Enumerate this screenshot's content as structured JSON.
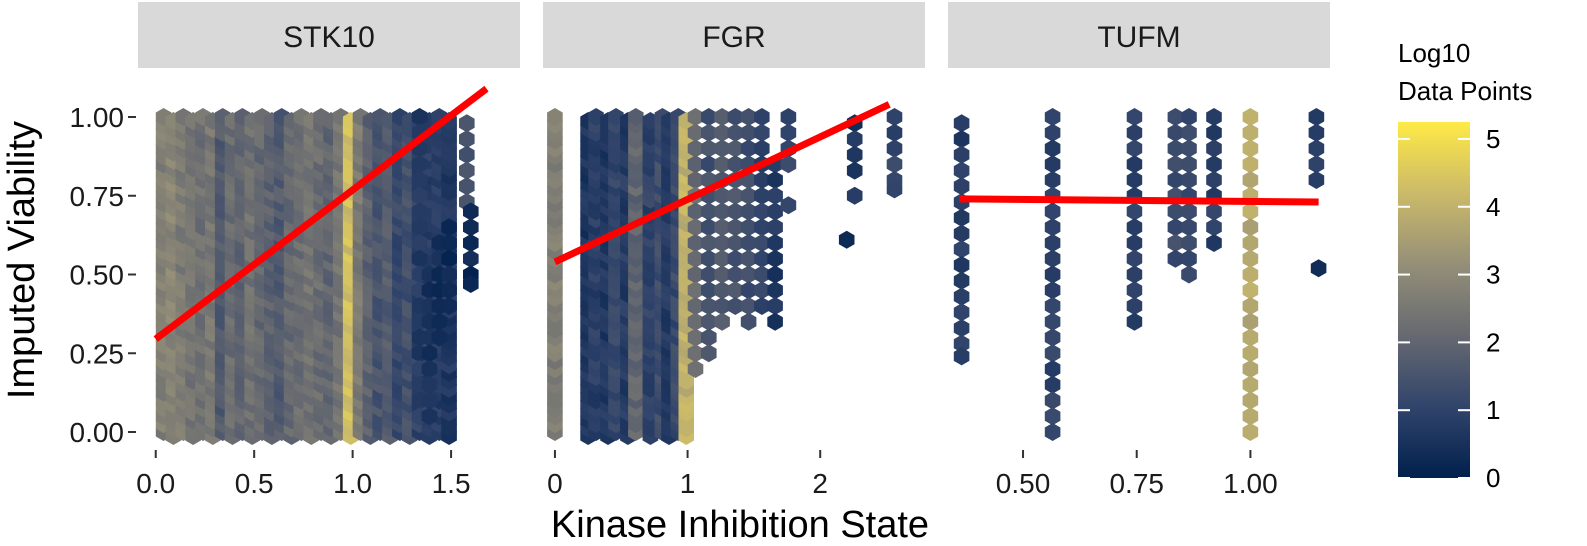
{
  "chart_data": {
    "type": "hexbin",
    "xlabel": "Kinase Inhibition State",
    "ylabel": "Imputed Viability",
    "legend": {
      "title_line1": "Log10",
      "title_line2": "Data Points",
      "ticks": [
        "0",
        "1",
        "2",
        "3",
        "4",
        "5"
      ],
      "range": [
        0,
        5.25
      ],
      "placement": "right",
      "colors": [
        "#00204D",
        "#31446B",
        "#666970",
        "#958F78",
        "#CBBA69",
        "#FFEA46"
      ]
    },
    "line_color": "#FF0000",
    "panels": [
      {
        "strip": "STK10",
        "xlim": [
          -0.09,
          1.85
        ],
        "xticks": [
          0.0,
          0.5,
          1.0,
          1.5
        ],
        "xtick_labels": [
          "0.0",
          "0.5",
          "1.0",
          "1.5"
        ],
        "ylim": [
          -0.05,
          1.08
        ],
        "yticks": [
          0.0,
          0.25,
          0.5,
          0.75,
          1.0
        ],
        "ytick_labels": [
          "0.00",
          "0.25",
          "0.50",
          "0.75",
          "1.00"
        ],
        "x_extent": [
          0.0,
          1.52
        ],
        "fit": {
          "x": [
            0.0,
            1.68
          ],
          "y": [
            0.295,
            1.09
          ]
        },
        "hex_columns": [
          {
            "x": 0.04,
            "v": 2.7
          },
          {
            "x": 0.09,
            "v": 2.9
          },
          {
            "x": 0.14,
            "v": 2.6
          },
          {
            "x": 0.19,
            "v": 2.4
          },
          {
            "x": 0.24,
            "v": 2.3
          },
          {
            "x": 0.29,
            "v": 2.5
          },
          {
            "x": 0.34,
            "v": 1.7
          },
          {
            "x": 0.39,
            "v": 2.2
          },
          {
            "x": 0.44,
            "v": 2.0
          },
          {
            "x": 0.49,
            "v": 2.3
          },
          {
            "x": 0.54,
            "v": 2.1
          },
          {
            "x": 0.59,
            "v": 1.9
          },
          {
            "x": 0.64,
            "v": 1.7
          },
          {
            "x": 0.69,
            "v": 2.1
          },
          {
            "x": 0.74,
            "v": 2.2
          },
          {
            "x": 0.79,
            "v": 2.4
          },
          {
            "x": 0.84,
            "v": 2.2
          },
          {
            "x": 0.89,
            "v": 2.0
          },
          {
            "x": 0.94,
            "v": 2.4
          },
          {
            "x": 0.99,
            "v": 4.3
          },
          {
            "x": 1.04,
            "v": 2.6
          },
          {
            "x": 1.09,
            "v": 1.9
          },
          {
            "x": 1.14,
            "v": 1.5
          },
          {
            "x": 1.19,
            "v": 1.7
          },
          {
            "x": 1.24,
            "v": 1.2
          },
          {
            "x": 1.29,
            "v": 1.4
          },
          {
            "x": 1.34,
            "v": 1.0
          },
          {
            "x": 1.39,
            "v": 0.9
          },
          {
            "x": 1.44,
            "v": 0.8
          },
          {
            "x": 1.49,
            "v": 0.7
          }
        ],
        "hex_sparse": [
          {
            "x": 1.34,
            "y": [
              1.0,
              0.95,
              0.9,
              0.85,
              0.8,
              0.75,
              0.7,
              0.65,
              0.6,
              0.55,
              0.5,
              0.45,
              0.4,
              0.35,
              0.3,
              0.25,
              0.2,
              0.15,
              0.1,
              0.05
            ],
            "v": 0.8
          },
          {
            "x": 1.39,
            "y": [
              0.5,
              0.45,
              0.4,
              0.35,
              0.3,
              0.25,
              0.2,
              0.15,
              0.1,
              0.05
            ],
            "v": 0.5
          },
          {
            "x": 1.44,
            "y": [
              0.6,
              0.55,
              0.5,
              0.45,
              0.4,
              0.35,
              0.3
            ],
            "v": 0.4
          },
          {
            "x": 1.49,
            "y": [
              0.65,
              0.6,
              0.55,
              0.5,
              0.45,
              0.4
            ],
            "v": 0.3
          },
          {
            "x": 1.58,
            "y": [
              0.98,
              0.93,
              0.88,
              0.83,
              0.78,
              0.73
            ],
            "v": 1.4
          },
          {
            "x": 1.6,
            "y": [
              0.7,
              0.65,
              0.6,
              0.55,
              0.5,
              0.47
            ],
            "v": 0.3
          }
        ]
      },
      {
        "strip": "FGR",
        "xlim": [
          -0.09,
          2.79
        ],
        "xticks": [
          0,
          1,
          2
        ],
        "xtick_labels": [
          "0",
          "1",
          "2"
        ],
        "ylim": [
          -0.05,
          1.08
        ],
        "hex_columns": [
          {
            "x": 0.0,
            "v": 2.7
          },
          {
            "x": 0.25,
            "v": 0.6
          },
          {
            "x": 0.31,
            "v": 0.9
          },
          {
            "x": 0.4,
            "v": 0.7
          },
          {
            "x": 0.46,
            "v": 1.1
          },
          {
            "x": 0.55,
            "v": 0.8
          },
          {
            "x": 0.61,
            "v": 2.0
          },
          {
            "x": 0.72,
            "v": 1.0
          },
          {
            "x": 0.81,
            "v": 1.3
          },
          {
            "x": 0.86,
            "v": 0.8
          },
          {
            "x": 0.93,
            "v": 1.2
          },
          {
            "x": 0.99,
            "v": 4.0
          }
        ],
        "hex_sparse": [
          {
            "x": 1.06,
            "y": [
              1.0,
              0.95,
              0.9,
              0.85,
              0.8,
              0.75,
              0.7,
              0.65,
              0.6,
              0.55,
              0.5,
              0.45,
              0.4,
              0.35,
              0.3,
              0.25,
              0.2
            ],
            "v": 2.1
          },
          {
            "x": 1.16,
            "y": [
              1.0,
              0.95,
              0.9,
              0.85,
              0.8,
              0.75,
              0.7,
              0.65,
              0.6,
              0.55,
              0.5,
              0.45,
              0.4,
              0.35,
              0.3,
              0.25
            ],
            "v": 1.4
          },
          {
            "x": 1.26,
            "y": [
              1.0,
              0.95,
              0.9,
              0.85,
              0.8,
              0.75,
              0.7,
              0.65,
              0.6,
              0.55,
              0.5,
              0.45,
              0.4,
              0.35
            ],
            "v": 1.6
          },
          {
            "x": 1.36,
            "y": [
              1.0,
              0.95,
              0.9,
              0.85,
              0.8,
              0.75,
              0.7,
              0.65,
              0.6,
              0.55,
              0.5,
              0.45,
              0.4
            ],
            "v": 1.5
          },
          {
            "x": 1.46,
            "y": [
              1.0,
              0.95,
              0.9,
              0.85,
              0.8,
              0.75,
              0.7,
              0.65,
              0.6,
              0.55,
              0.5,
              0.45,
              0.4,
              0.35
            ],
            "v": 1.3
          },
          {
            "x": 1.56,
            "y": [
              1.0,
              0.95,
              0.9,
              0.85,
              0.8,
              0.75,
              0.7,
              0.65,
              0.6,
              0.55,
              0.5,
              0.45,
              0.4
            ],
            "v": 1.0
          },
          {
            "x": 1.66,
            "y": [
              0.85,
              0.8,
              0.75,
              0.7,
              0.65,
              0.6,
              0.55,
              0.5,
              0.45,
              0.4,
              0.35
            ],
            "v": 0.7
          },
          {
            "x": 1.76,
            "y": [
              1.0,
              0.95,
              0.9,
              0.85,
              0.72
            ],
            "v": 1.2
          },
          {
            "x": 2.26,
            "y": [
              0.98,
              0.93,
              0.88,
              0.83,
              0.75
            ],
            "v": 0.6
          },
          {
            "x": 2.2,
            "y": [
              0.61
            ],
            "v": 0.3
          },
          {
            "x": 2.56,
            "y": [
              1.0,
              0.95,
              0.9,
              0.85,
              0.8,
              0.77
            ],
            "v": 1.1
          }
        ],
        "fit": {
          "x": [
            0.0,
            2.52
          ],
          "y": [
            0.54,
            1.04
          ]
        }
      },
      {
        "strip": "TUFM",
        "xlim": [
          0.335,
          1.175
        ],
        "xticks": [
          0.5,
          0.75,
          1.0
        ],
        "xtick_labels": [
          "0.50",
          "0.75",
          "1.00"
        ],
        "ylim": [
          -0.05,
          1.08
        ],
        "fit": {
          "x": [
            0.36,
            1.15
          ],
          "y": [
            0.74,
            0.73
          ]
        },
        "hex_sparse": [
          {
            "x": 0.365,
            "y": [
              0.98,
              0.93,
              0.88,
              0.83,
              0.78,
              0.73,
              0.68,
              0.63,
              0.58,
              0.53,
              0.48,
              0.43,
              0.38,
              0.33,
              0.28,
              0.24
            ],
            "v": 0.8
          },
          {
            "x": 0.565,
            "y": [
              1.0,
              0.95,
              0.9,
              0.85,
              0.8,
              0.75,
              0.7,
              0.65,
              0.6,
              0.55,
              0.5,
              0.45,
              0.4,
              0.35,
              0.3,
              0.25,
              0.2,
              0.15,
              0.1,
              0.05,
              0.0
            ],
            "v": 1.0
          },
          {
            "x": 0.745,
            "y": [
              1.0,
              0.95,
              0.9,
              0.85,
              0.8,
              0.75,
              0.7,
              0.65,
              0.6,
              0.55,
              0.5,
              0.45,
              0.4,
              0.35
            ],
            "v": 0.9
          },
          {
            "x": 0.835,
            "y": [
              1.0,
              0.95,
              0.9,
              0.85,
              0.8,
              0.75,
              0.7,
              0.65,
              0.6,
              0.55
            ],
            "v": 1.3
          },
          {
            "x": 0.865,
            "y": [
              1.0,
              0.95,
              0.9,
              0.85,
              0.8,
              0.75,
              0.7,
              0.65,
              0.6,
              0.55,
              0.5
            ],
            "v": 1.1
          },
          {
            "x": 0.92,
            "y": [
              1.0,
              0.95,
              0.9,
              0.85,
              0.8,
              0.75,
              0.7,
              0.65,
              0.6
            ],
            "v": 0.9
          },
          {
            "x": 1.0,
            "y": [
              1.0,
              0.95,
              0.9,
              0.85,
              0.8,
              0.75,
              0.7,
              0.65,
              0.6,
              0.55,
              0.5,
              0.45,
              0.4,
              0.35,
              0.3,
              0.25,
              0.2,
              0.15,
              0.1,
              0.05,
              0.0
            ],
            "v": 3.8
          },
          {
            "x": 1.145,
            "y": [
              1.0,
              0.95,
              0.9,
              0.85,
              0.8
            ],
            "v": 0.9
          },
          {
            "x": 1.15,
            "y": [
              0.52
            ],
            "v": 0.2
          }
        ]
      }
    ]
  }
}
